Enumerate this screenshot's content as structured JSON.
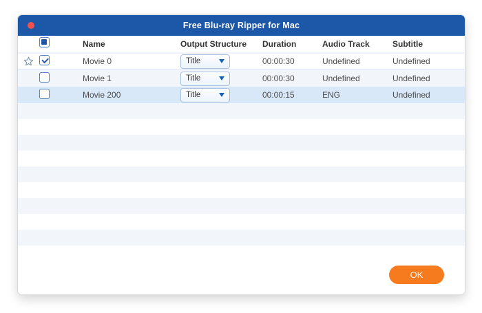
{
  "window": {
    "title": "Free Blu-ray Ripper for Mac"
  },
  "table": {
    "select_all_state": "partial",
    "columns": [
      "Name",
      "Output Structure",
      "Duration",
      "Audio Track",
      "Subtitle"
    ],
    "rows": [
      {
        "name": "Movie 0",
        "output_structure": "Title",
        "duration": "00:00:30",
        "audio_track": "Undefined",
        "subtitle": "Undefined",
        "checked": true,
        "starred": true,
        "row_style": "plain"
      },
      {
        "name": "Movie 1",
        "output_structure": "Title",
        "duration": "00:00:30",
        "audio_track": "Undefined",
        "subtitle": "Undefined",
        "checked": false,
        "starred": false,
        "row_style": "striped"
      },
      {
        "name": "Movie 200",
        "output_structure": "Title",
        "duration": "00:00:15",
        "audio_track": "ENG",
        "subtitle": "Undefined",
        "checked": false,
        "starred": false,
        "row_style": "selected"
      }
    ],
    "empty_row_count": 9
  },
  "footer": {
    "ok_label": "OK"
  },
  "icons": {
    "close": "close-traffic-light-icon",
    "star": "star-outline-icon",
    "dropdown_arrow": "chevron-down-icon"
  },
  "colors": {
    "title_bar": "#1d57a8",
    "close_button": "#f0524b",
    "selected_row": "#d9e8f8",
    "stripe": "#f2f6fb",
    "checkbox_accent": "#2257a8",
    "dropdown_triangle": "#1661b8",
    "ok_button": "#f67b1f"
  }
}
